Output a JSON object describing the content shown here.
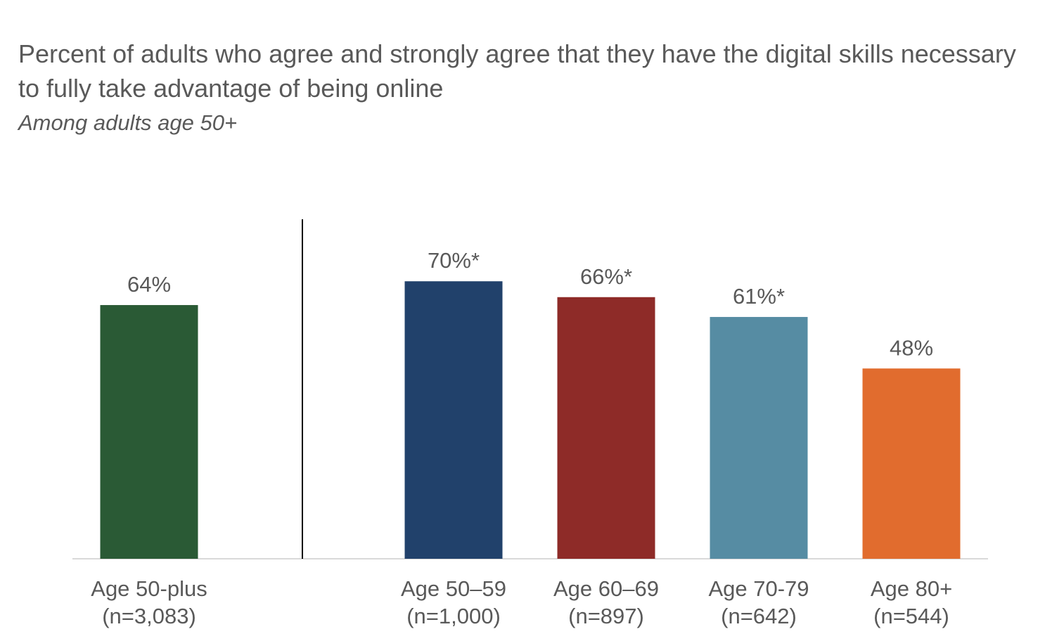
{
  "chart_data": {
    "type": "bar",
    "title": "Percent of adults who agree and strongly agree that they have the digital skills necessary to fully take advantage of being online",
    "subtitle": "Among adults age 50+",
    "ylim": [
      0,
      100
    ],
    "grid": false,
    "categories": [
      {
        "line1": "Age 50-plus",
        "line2": "(n=3,083)"
      },
      {
        "line1": "Age 50–59",
        "line2": "(n=1,000)"
      },
      {
        "line1": "Age 60–69",
        "line2": "(n=897)"
      },
      {
        "line1": "Age 70-79",
        "line2": "(n=642)"
      },
      {
        "line1": "Age 80+",
        "line2": "(n=544)"
      }
    ],
    "values": [
      64,
      70,
      66,
      61,
      48
    ],
    "data_labels": [
      "64%",
      "70%*",
      "66%*",
      "61%*",
      "48%"
    ],
    "colors": [
      "#2a5a35",
      "#21416b",
      "#8e2b28",
      "#568ca3",
      "#e16c2e"
    ]
  }
}
